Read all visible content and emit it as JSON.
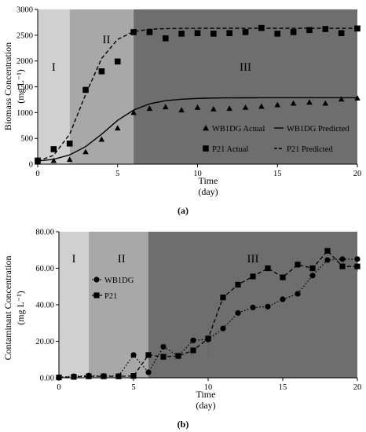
{
  "chart_data": [
    {
      "type": "scatter",
      "panel_label": "(a)",
      "xlabel": "Time",
      "xlabel_unit": "(day)",
      "ylabel": "Biomass Concentration",
      "ylabel_unit": "(mg L⁻¹)",
      "xlim": [
        0,
        20
      ],
      "ylim": [
        0,
        3000
      ],
      "xticks": [
        "0",
        "5",
        "10",
        "15",
        "20"
      ],
      "yticks": [
        "0",
        "500",
        "1000",
        "1500",
        "2000",
        "2500",
        "3000"
      ],
      "phases": [
        {
          "label": "I",
          "x_start": 0,
          "x_end": 2,
          "color": "#d0d0d0"
        },
        {
          "label": "II",
          "x_start": 2,
          "x_end": 6,
          "color": "#a8a8a8"
        },
        {
          "label": "III",
          "x_start": 6,
          "x_end": 20,
          "color": "#6e6e6e"
        }
      ],
      "series": [
        {
          "name": "WB1DG Actual",
          "marker": "triangle",
          "style": "markers",
          "x": [
            0,
            1,
            2,
            3,
            4,
            5,
            6,
            7,
            8,
            9,
            10,
            11,
            12,
            13,
            14,
            15,
            16,
            17,
            18,
            19,
            20
          ],
          "y": [
            50,
            70,
            90,
            240,
            480,
            700,
            1000,
            1080,
            1110,
            1050,
            1100,
            1070,
            1080,
            1100,
            1120,
            1150,
            1180,
            1200,
            1180,
            1260,
            1280
          ]
        },
        {
          "name": "WB1DG Predicted",
          "style": "solid",
          "x": [
            0,
            1,
            2,
            3,
            4,
            5,
            6,
            7,
            8,
            9,
            10,
            11,
            12,
            13,
            14,
            15,
            16,
            17,
            18,
            19,
            20
          ],
          "y": [
            60,
            95,
            180,
            340,
            580,
            850,
            1050,
            1170,
            1230,
            1260,
            1275,
            1282,
            1285,
            1287,
            1288,
            1288,
            1288,
            1288,
            1288,
            1288,
            1288
          ]
        },
        {
          "name": "P21 Actual",
          "marker": "square",
          "style": "markers",
          "x": [
            0,
            1,
            2,
            3,
            4,
            5,
            6,
            7,
            8,
            9,
            10,
            11,
            12,
            13,
            14,
            15,
            16,
            17,
            18,
            19,
            20
          ],
          "y": [
            70,
            290,
            400,
            1440,
            1800,
            1990,
            2560,
            2560,
            2440,
            2530,
            2540,
            2530,
            2540,
            2560,
            2640,
            2530,
            2560,
            2600,
            2620,
            2540,
            2630
          ]
        },
        {
          "name": "P21 Predicted",
          "style": "dashed",
          "x": [
            0,
            1,
            2,
            3,
            4,
            5,
            6,
            7,
            8,
            9,
            10,
            11,
            12,
            13,
            14,
            15,
            16,
            17,
            18,
            19,
            20
          ],
          "y": [
            60,
            170,
            580,
            1350,
            2050,
            2420,
            2570,
            2615,
            2628,
            2632,
            2634,
            2635,
            2635,
            2635,
            2635,
            2635,
            2635,
            2635,
            2635,
            2635,
            2635
          ]
        }
      ],
      "legend": [
        {
          "label": "WB1DG Actual",
          "symbol": "triangle"
        },
        {
          "label": "WB1DG Predicted",
          "symbol": "solid-line"
        },
        {
          "label": "P21 Actual",
          "symbol": "square"
        },
        {
          "label": "P21 Predicted",
          "symbol": "dashed-line"
        }
      ]
    },
    {
      "type": "line",
      "panel_label": "(b)",
      "xlabel": "Time",
      "xlabel_unit": "(day)",
      "ylabel": "Contaminant Concentration",
      "ylabel_unit": "(mg L⁻¹)",
      "xlim": [
        0,
        20
      ],
      "ylim": [
        0,
        80
      ],
      "xticks": [
        "0",
        "5",
        "10",
        "15",
        "20"
      ],
      "yticks": [
        "0.00",
        "20.00",
        "40.00",
        "60.00",
        "80.00"
      ],
      "phases": [
        {
          "label": "I",
          "x_start": 0,
          "x_end": 2,
          "color": "#d0d0d0"
        },
        {
          "label": "II",
          "x_start": 2,
          "x_end": 6,
          "color": "#a8a8a8"
        },
        {
          "label": "III",
          "x_start": 6,
          "x_end": 20,
          "color": "#6e6e6e"
        }
      ],
      "series": [
        {
          "name": "WB1DG",
          "marker": "circle",
          "style": "dotted",
          "x": [
            0,
            1,
            2,
            3,
            4,
            5,
            6,
            7,
            8,
            9,
            10,
            11,
            12,
            13,
            14,
            15,
            16,
            17,
            18,
            19,
            20
          ],
          "y": [
            0.3,
            0.8,
            1.2,
            1.0,
            1.0,
            12.5,
            3.0,
            17.0,
            12.0,
            20.5,
            21.0,
            27.0,
            35.5,
            38.5,
            39.0,
            43.0,
            46.0,
            56.0,
            64.5,
            65.0,
            65.0
          ],
          "err": [
            0,
            0,
            0,
            0,
            0,
            0,
            0,
            0,
            0,
            1.5,
            10,
            2,
            0,
            0,
            0,
            0,
            0,
            0,
            0,
            0,
            0
          ]
        },
        {
          "name": "P21",
          "marker": "square",
          "style": "dashed",
          "x": [
            0,
            1,
            2,
            3,
            4,
            5,
            6,
            7,
            8,
            9,
            10,
            11,
            12,
            13,
            14,
            15,
            16,
            17,
            18,
            19,
            20
          ],
          "y": [
            0.2,
            0.5,
            0.8,
            0.8,
            0.8,
            1.0,
            12.5,
            11.5,
            12.0,
            15.0,
            21.5,
            44.0,
            51.0,
            55.5,
            60.0,
            55.0,
            62.0,
            60.0,
            69.5,
            61.0,
            61.0
          ],
          "err": [
            0,
            0,
            0,
            0,
            0,
            0,
            0,
            2,
            2,
            0,
            0,
            0,
            0,
            0,
            0,
            3,
            4,
            6,
            3,
            3,
            3
          ]
        }
      ],
      "legend": [
        {
          "label": "WB1DG",
          "symbol": "circle"
        },
        {
          "label": "P21",
          "symbol": "square"
        }
      ]
    }
  ]
}
